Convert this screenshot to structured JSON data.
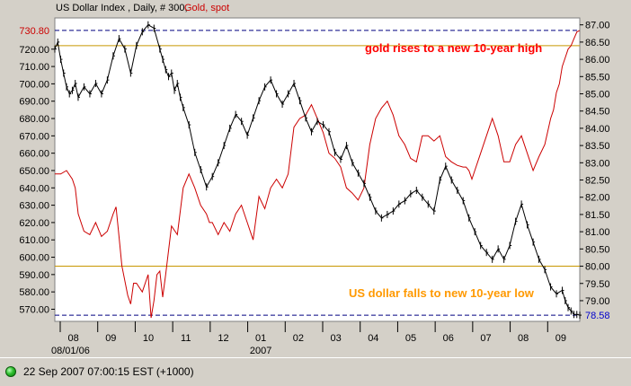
{
  "header": {
    "title_prefix": "US Dollar Index , Daily, # 300,",
    "title_suffix": "Gold, spot"
  },
  "status": {
    "timestamp": "22 Sep 2007 07:00:15 EST (+1000)",
    "indicator_color": "#2fbf2f"
  },
  "chart_data": {
    "type": "line",
    "title": "US Dollar Index , Daily, # 300, Gold, spot",
    "x_tick_labels": [
      "08",
      "09",
      "10",
      "11",
      "12",
      "01",
      "02",
      "03",
      "04",
      "05",
      "06",
      "07",
      "08",
      "09"
    ],
    "x_sublabels": [
      "08/01/06",
      "2007"
    ],
    "left_axis": {
      "label": "Gold, spot",
      "ylim": [
        563,
        738
      ],
      "tick_values": [
        570,
        580,
        590,
        600,
        610,
        620,
        630,
        640,
        650,
        660,
        670,
        680,
        690,
        700,
        710,
        720
      ],
      "tick_labels": [
        "570.00",
        "580.00",
        "590.00",
        "600.00",
        "610.00",
        "620.00",
        "630.00",
        "640.00",
        "650.00",
        "660.00",
        "670.00",
        "680.00",
        "690.00",
        "700.00",
        "710.00",
        "720.00"
      ],
      "highlight_value": "730.80",
      "color": "#cc0000"
    },
    "right_axis": {
      "label": "US Dollar Index",
      "ylim": [
        78.4,
        87.2
      ],
      "tick_values": [
        79.0,
        79.5,
        80.0,
        80.5,
        81.0,
        81.5,
        82.0,
        82.5,
        83.0,
        83.5,
        84.0,
        84.5,
        85.0,
        85.5,
        86.0,
        86.5,
        87.0
      ],
      "tick_labels": [
        "79.00",
        "79.50",
        "80.00",
        "80.50",
        "81.00",
        "81.50",
        "82.00",
        "82.50",
        "83.00",
        "83.50",
        "84.00",
        "84.50",
        "85.00",
        "85.50",
        "86.00",
        "86.50",
        "87.00"
      ],
      "highlight_value": "78.58",
      "color": "#000000"
    },
    "series": [
      {
        "name": "Gold, spot",
        "axis": "left",
        "color": "#cc0000",
        "x": [
          0,
          2,
          4,
          6,
          7,
          8,
          10,
          12,
          14,
          16,
          18,
          20,
          21,
          22,
          23,
          25,
          26,
          27,
          28,
          30,
          32,
          33,
          34,
          35,
          36,
          37,
          38,
          40,
          42,
          44,
          46,
          48,
          50,
          52,
          53,
          54,
          56,
          58,
          60,
          62,
          64,
          66,
          68,
          70,
          72,
          74,
          76,
          78,
          80,
          82,
          84,
          86,
          88,
          90,
          92,
          94,
          96,
          98,
          100,
          102,
          104,
          106,
          108,
          110,
          112,
          114,
          116,
          118,
          120,
          122,
          124,
          126,
          128,
          130,
          132,
          134,
          136,
          138,
          140,
          141,
          142,
          143,
          144,
          146,
          148,
          150,
          152,
          154,
          156,
          158,
          160,
          162,
          164,
          166,
          168,
          170,
          171,
          172,
          173,
          174,
          175,
          176,
          177,
          178,
          179,
          180
        ],
        "y": [
          648,
          648,
          650,
          645,
          640,
          625,
          615,
          613,
          620,
          612,
          615,
          625,
          629,
          612,
          595,
          578,
          573,
          585,
          585,
          580,
          590,
          565,
          575,
          590,
          592,
          577,
          590,
          618,
          613,
          640,
          648,
          640,
          630,
          625,
          620,
          620,
          613,
          620,
          615,
          625,
          630,
          620,
          610,
          635,
          628,
          640,
          645,
          640,
          648,
          675,
          680,
          682,
          688,
          680,
          672,
          660,
          657,
          652,
          640,
          637,
          633,
          640,
          665,
          680,
          686,
          690,
          682,
          670,
          665,
          657,
          655,
          670,
          670,
          667,
          670,
          658,
          655,
          653,
          652,
          652,
          650,
          645,
          650,
          660,
          670,
          680,
          670,
          655,
          655,
          665,
          670,
          660,
          650,
          658,
          665,
          680,
          685,
          695,
          700,
          710,
          715,
          720,
          722,
          726,
          730,
          730.8
        ]
      },
      {
        "name": "US Dollar Index",
        "axis": "right",
        "color": "#000000",
        "x": [
          0,
          1,
          2,
          3,
          4,
          5,
          6,
          7,
          8,
          10,
          12,
          14,
          16,
          18,
          20,
          22,
          24,
          26,
          28,
          30,
          32,
          34,
          36,
          37,
          38,
          39,
          40,
          41,
          42,
          43,
          44,
          46,
          48,
          50,
          52,
          54,
          56,
          58,
          60,
          62,
          64,
          66,
          68,
          70,
          72,
          74,
          76,
          78,
          80,
          82,
          84,
          86,
          88,
          90,
          92,
          94,
          96,
          98,
          100,
          102,
          104,
          106,
          108,
          110,
          112,
          114,
          116,
          118,
          120,
          122,
          124,
          126,
          128,
          130,
          132,
          134,
          136,
          138,
          140,
          142,
          144,
          146,
          148,
          150,
          152,
          154,
          156,
          158,
          160,
          162,
          164,
          166,
          168,
          170,
          172,
          174,
          175,
          176,
          177,
          178,
          179,
          180
        ],
        "y": [
          86.3,
          86.5,
          86.0,
          85.6,
          85.2,
          85.0,
          85.1,
          85.3,
          84.9,
          85.2,
          85.0,
          85.3,
          85.0,
          85.4,
          86.1,
          86.6,
          86.3,
          85.6,
          86.4,
          86.8,
          87.0,
          86.9,
          86.3,
          86.0,
          85.7,
          85.5,
          85.6,
          85.1,
          85.3,
          84.9,
          84.6,
          84.1,
          83.3,
          82.8,
          82.3,
          82.6,
          83.0,
          83.5,
          84.0,
          84.4,
          84.2,
          83.8,
          84.3,
          84.8,
          85.2,
          85.4,
          85.0,
          84.7,
          85.0,
          85.3,
          84.8,
          84.3,
          83.9,
          84.2,
          84.1,
          83.9,
          83.3,
          83.1,
          83.5,
          83.0,
          82.7,
          82.4,
          82.0,
          81.6,
          81.4,
          81.5,
          81.6,
          81.8,
          81.9,
          82.1,
          82.2,
          82.0,
          81.8,
          81.6,
          82.5,
          82.9,
          82.5,
          82.2,
          81.9,
          81.4,
          81.0,
          80.6,
          80.4,
          80.2,
          80.5,
          80.2,
          80.6,
          81.3,
          81.8,
          81.2,
          80.7,
          80.2,
          79.9,
          79.4,
          79.2,
          79.3,
          79.0,
          78.8,
          78.7,
          78.6,
          78.6,
          78.58
        ]
      }
    ],
    "reference_lines": [
      {
        "name": "gold-high-line",
        "axis": "left",
        "value": 730.8,
        "color": "#000080",
        "style": "dashed"
      },
      {
        "name": "usd-low-line",
        "axis": "right",
        "value": 78.58,
        "color": "#000080",
        "style": "dashed"
      },
      {
        "name": "gold-level-line",
        "axis": "left",
        "value": 722,
        "color": "#c89600",
        "style": "solid"
      },
      {
        "name": "usd-level-line",
        "axis": "right",
        "value": 80.0,
        "color": "#c89600",
        "style": "solid"
      }
    ],
    "annotations": [
      {
        "name": "gold-annotation",
        "text": "gold rises to a new 10-year high",
        "color": "#ff0000"
      },
      {
        "name": "usd-annotation",
        "text": "US dollar falls to new 10-year low",
        "color": "#ff9900"
      }
    ],
    "grid": false,
    "legend": "top-left"
  }
}
